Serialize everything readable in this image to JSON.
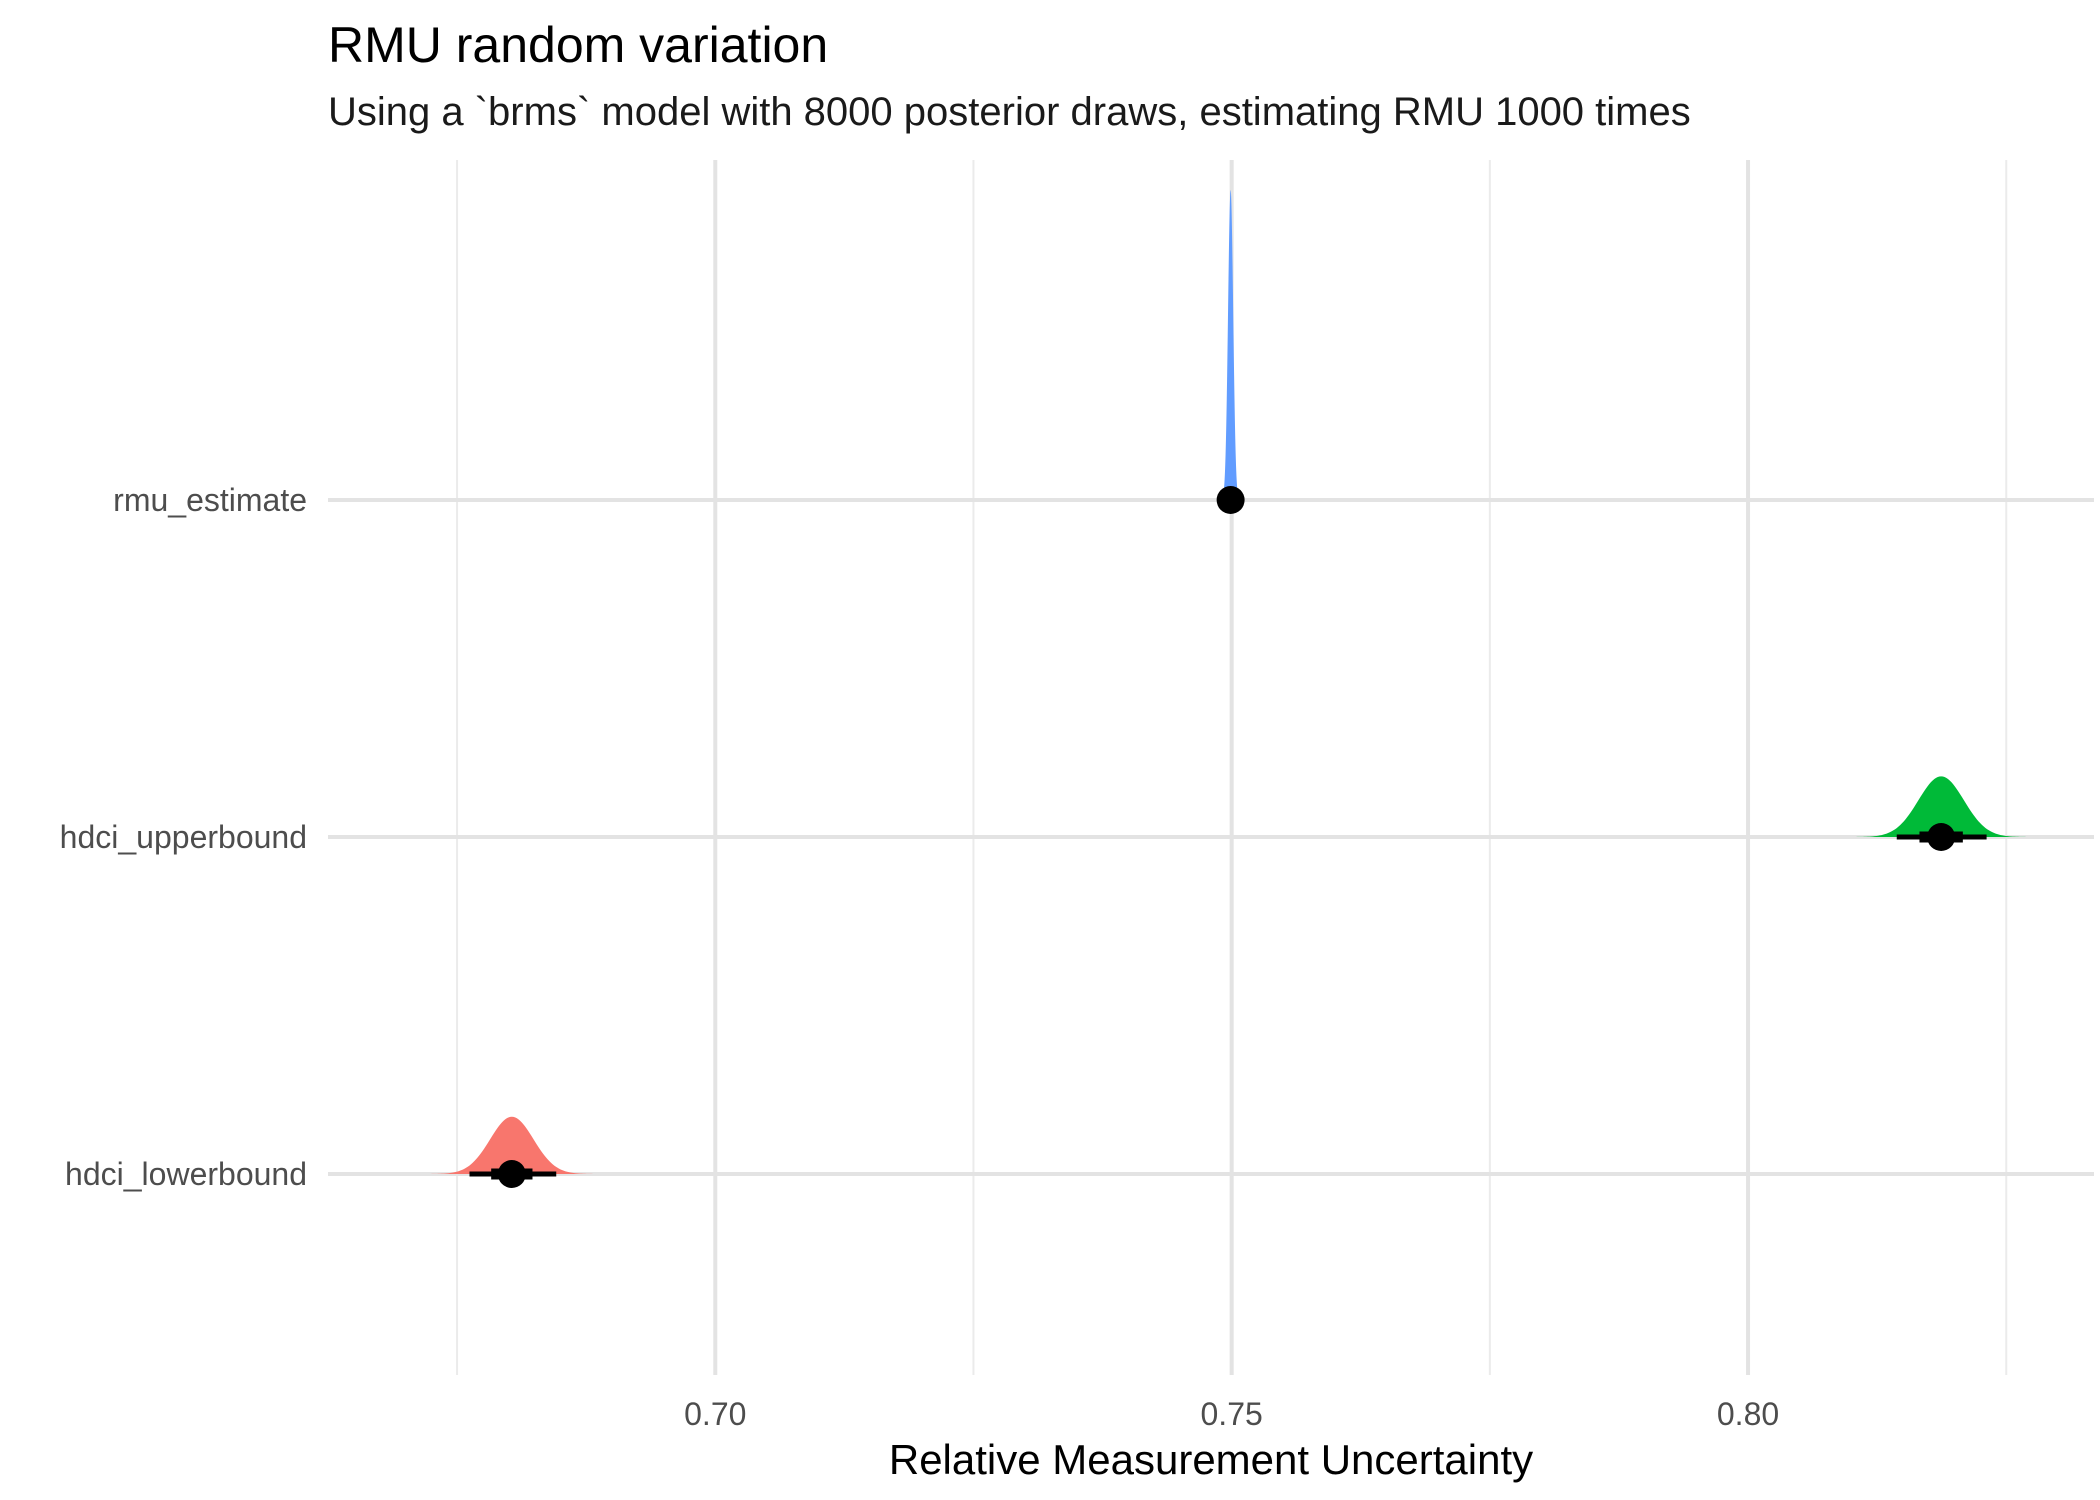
{
  "chart_data": {
    "type": "halfeye",
    "title": "RMU random variation",
    "subtitle": "Using a `brms` model with 8000 posterior draws, estimating RMU 1000 times",
    "xlabel": "Relative Measurement Uncertainty",
    "ylabel": "",
    "xlim": [
      0.6625,
      0.8335
    ],
    "x_ticks": [
      0.7,
      0.75,
      0.8
    ],
    "x_tick_labels": [
      "0.70",
      "0.75",
      "0.80"
    ],
    "x_minor_ticks": [
      0.675,
      0.725,
      0.775,
      0.825
    ],
    "categories": [
      "rmu_estimate",
      "hdci_upperbound",
      "hdci_lowerbound"
    ],
    "grid": true,
    "legend": "none",
    "series": [
      {
        "category": "rmu_estimate",
        "color": "#619CFF",
        "point": 0.7499,
        "sd": 0.00025,
        "interval_66": [
          0.7496,
          0.7502
        ],
        "interval_95": [
          0.7494,
          0.7504
        ],
        "density_height": 0.92
      },
      {
        "category": "hdci_upperbound",
        "color": "#00BA38",
        "point": 0.8187,
        "sd": 0.0022,
        "interval_66": [
          0.8166,
          0.8208
        ],
        "interval_95": [
          0.8144,
          0.8231
        ],
        "density_height": 0.18
      },
      {
        "category": "hdci_lowerbound",
        "color": "#F8766D",
        "point": 0.6803,
        "sd": 0.0021,
        "interval_66": [
          0.6783,
          0.6823
        ],
        "interval_95": [
          0.6762,
          0.6846
        ],
        "density_height": 0.17
      }
    ]
  }
}
